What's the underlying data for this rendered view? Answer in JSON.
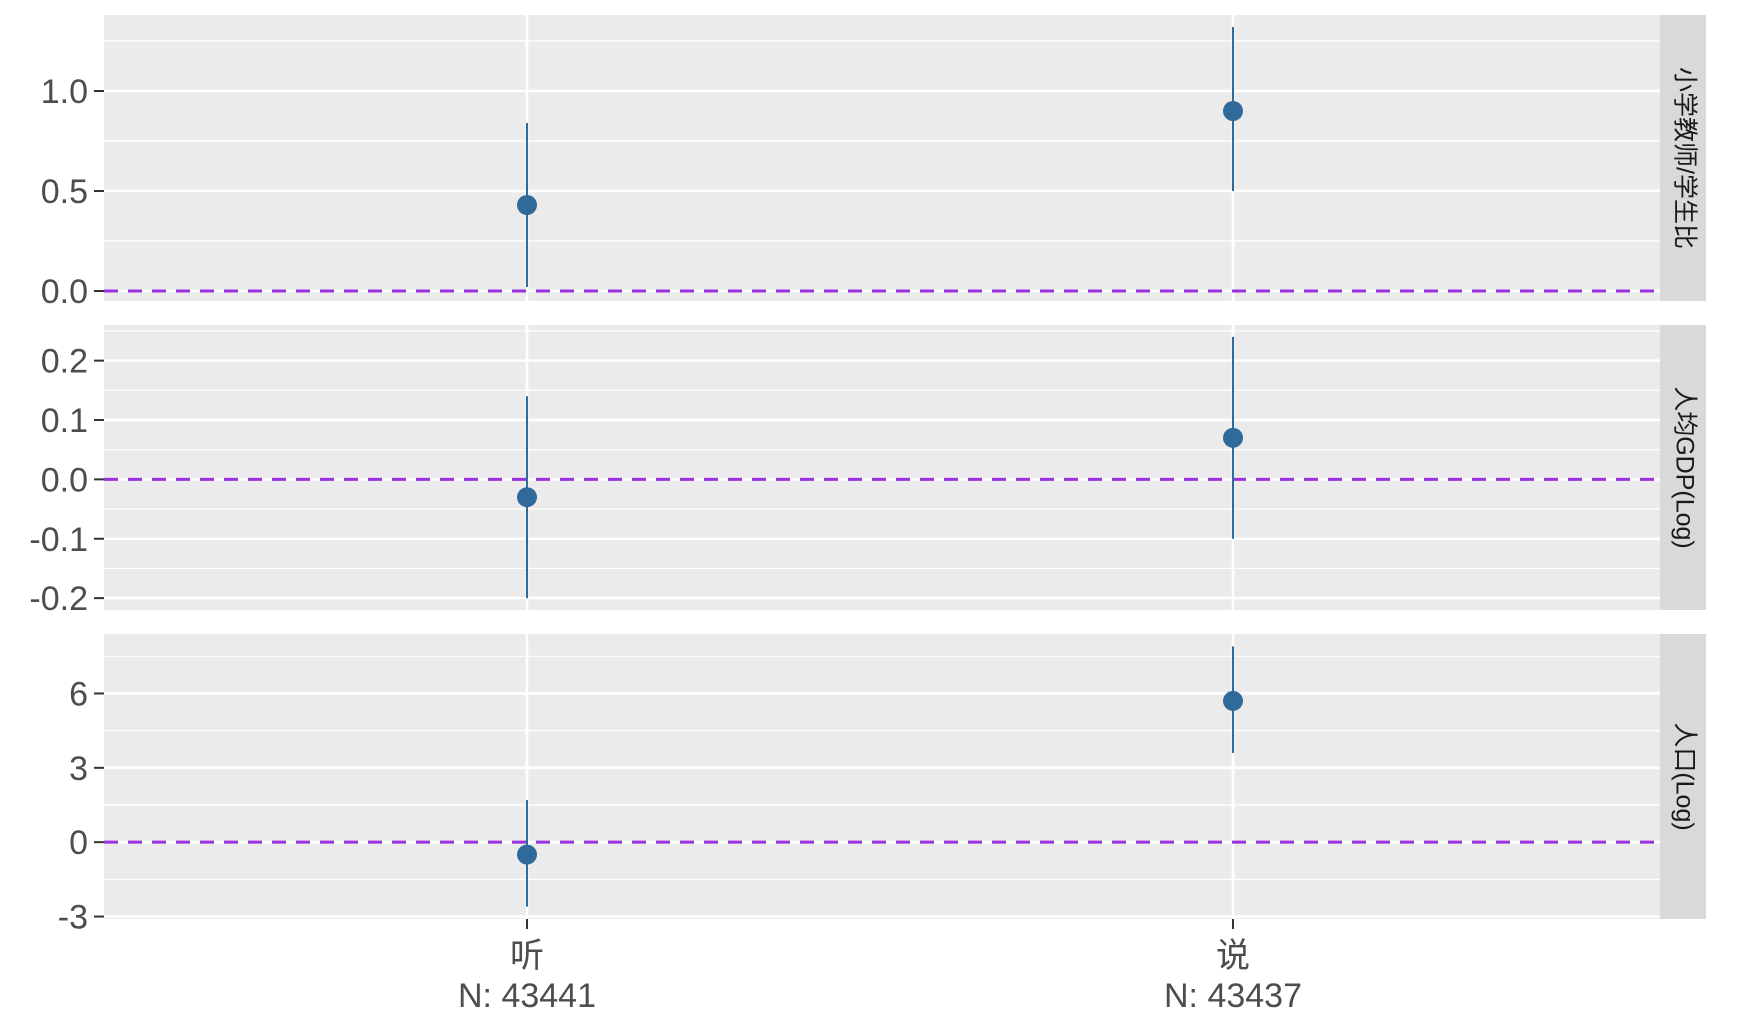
{
  "colors": {
    "panel_bg": "#EBEBEB",
    "grid": "#FFFFFF",
    "strip_bg": "#D9D9D9",
    "point": "#2F6A9B",
    "reference_line": "#9B30E0",
    "text": "#4D4D4D",
    "strip_text": "#1A1A1A"
  },
  "chart_data": {
    "type": "scatter",
    "style": "coefficient plot with vertical error bars, faceted by row",
    "categories": [
      "听",
      "说"
    ],
    "x_tick_labels": [
      {
        "category": "听",
        "n_label": "N: 43441"
      },
      {
        "category": "说",
        "n_label": "N: 43437"
      }
    ],
    "reference_line": {
      "y": 0,
      "style": "dashed"
    },
    "grid": true,
    "facets": [
      {
        "strip_label": "小学教师/学生比",
        "ylim": [
          -0.05,
          1.38
        ],
        "y_ticks": [
          0.0,
          0.5,
          1.0
        ],
        "y_tick_labels": [
          "0.0",
          "0.5",
          "1.0"
        ],
        "points": [
          {
            "x": "听",
            "estimate": 0.43,
            "lower": 0.02,
            "upper": 0.84
          },
          {
            "x": "说",
            "estimate": 0.9,
            "lower": 0.5,
            "upper": 1.32
          }
        ]
      },
      {
        "strip_label": "人均GDP(Log)",
        "ylim": [
          -0.22,
          0.26
        ],
        "y_ticks": [
          -0.2,
          -0.1,
          0.0,
          0.1,
          0.2
        ],
        "y_tick_labels": [
          "-0.2",
          "-0.1",
          "0.0",
          "0.1",
          "0.2"
        ],
        "points": [
          {
            "x": "听",
            "estimate": -0.03,
            "lower": -0.2,
            "upper": 0.14
          },
          {
            "x": "说",
            "estimate": 0.07,
            "lower": -0.1,
            "upper": 0.24
          }
        ]
      },
      {
        "strip_label": "人口(Log)",
        "ylim": [
          -3.1,
          8.4
        ],
        "y_ticks": [
          -3,
          0,
          3,
          6
        ],
        "y_tick_labels": [
          "-3",
          "0",
          "3",
          "6"
        ],
        "points": [
          {
            "x": "听",
            "estimate": -0.5,
            "lower": -2.6,
            "upper": 1.7
          },
          {
            "x": "说",
            "estimate": 5.7,
            "lower": 3.6,
            "upper": 7.9
          }
        ]
      }
    ]
  }
}
